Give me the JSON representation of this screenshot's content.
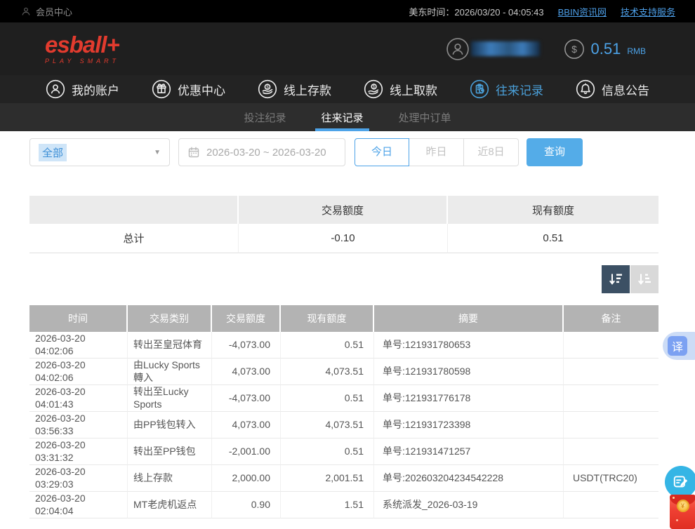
{
  "topbar": {
    "member_center": "会员中心",
    "time_label": "美东时间：2026/03/20 - 04:05:43",
    "links": [
      {
        "label": "BBIN资讯网"
      },
      {
        "label": "技术支持服务"
      }
    ]
  },
  "header": {
    "logo_text": "esball+",
    "logo_sub": "PLAY SMART",
    "balance_value": "0.51",
    "balance_currency": "RMB"
  },
  "nav": {
    "items": [
      {
        "label": "我的账户",
        "icon": "user-icon",
        "active": false
      },
      {
        "label": "优惠中心",
        "icon": "gift-icon",
        "active": false
      },
      {
        "label": "线上存款",
        "icon": "deposit-icon",
        "active": false
      },
      {
        "label": "线上取款",
        "icon": "withdraw-icon",
        "active": false
      },
      {
        "label": "往来记录",
        "icon": "records-icon",
        "active": true
      },
      {
        "label": "信息公告",
        "icon": "bell-icon",
        "active": false
      }
    ]
  },
  "subnav": {
    "items": [
      {
        "label": "投注纪录",
        "active": false
      },
      {
        "label": "往来记录",
        "active": true
      },
      {
        "label": "处理中订单",
        "active": false
      }
    ]
  },
  "filters": {
    "type_select_value": "全部",
    "date_range_value": "2026-03-20 ~ 2026-03-20",
    "quick_buttons": [
      {
        "label": "今日",
        "active": true
      },
      {
        "label": "昨日",
        "active": false
      },
      {
        "label": "近8日",
        "active": false
      }
    ],
    "search_label": "查询"
  },
  "summary_table": {
    "headers": [
      "",
      "交易额度",
      "现有额度"
    ],
    "total_label": "总计",
    "total_transaction": "-0.10",
    "total_balance": "0.51"
  },
  "records_table": {
    "headers": [
      "时间",
      "交易类别",
      "交易额度",
      "现有额度",
      "摘要",
      "备注"
    ],
    "rows": [
      [
        "2026-03-20 04:02:06",
        "转出至皇冠体育",
        "-4,073.00",
        "0.51",
        "单号:121931780653",
        ""
      ],
      [
        "2026-03-20 04:02:06",
        "由Lucky Sports轉入",
        "4,073.00",
        "4,073.51",
        "单号:121931780598",
        ""
      ],
      [
        "2026-03-20 04:01:43",
        "转出至Lucky Sports",
        "-4,073.00",
        "0.51",
        "单号:121931776178",
        ""
      ],
      [
        "2026-03-20 03:56:33",
        "由PP钱包转入",
        "4,073.00",
        "4,073.51",
        "单号:121931723398",
        ""
      ],
      [
        "2026-03-20 03:31:32",
        "转出至PP钱包",
        "-2,001.00",
        "0.51",
        "单号:121931471257",
        ""
      ],
      [
        "2026-03-20 03:29:03",
        "线上存款",
        "2,000.00",
        "2,001.51",
        "单号:202603204234542228",
        "USDT(TRC20)"
      ],
      [
        "2026-03-20 02:04:04",
        "MT老虎机返点",
        "0.90",
        "1.51",
        "系统派发_2026-03-19",
        ""
      ]
    ]
  },
  "floating": {
    "translate_label": "译"
  },
  "colors": {
    "accent_blue": "#4da3e8",
    "logo_red": "#e23b2e",
    "header_dark": "#1f1f1f",
    "table_header_gray": "#b3b3b3",
    "sort_active_bg": "#3c5064",
    "envelope_red": "#e02e22"
  }
}
